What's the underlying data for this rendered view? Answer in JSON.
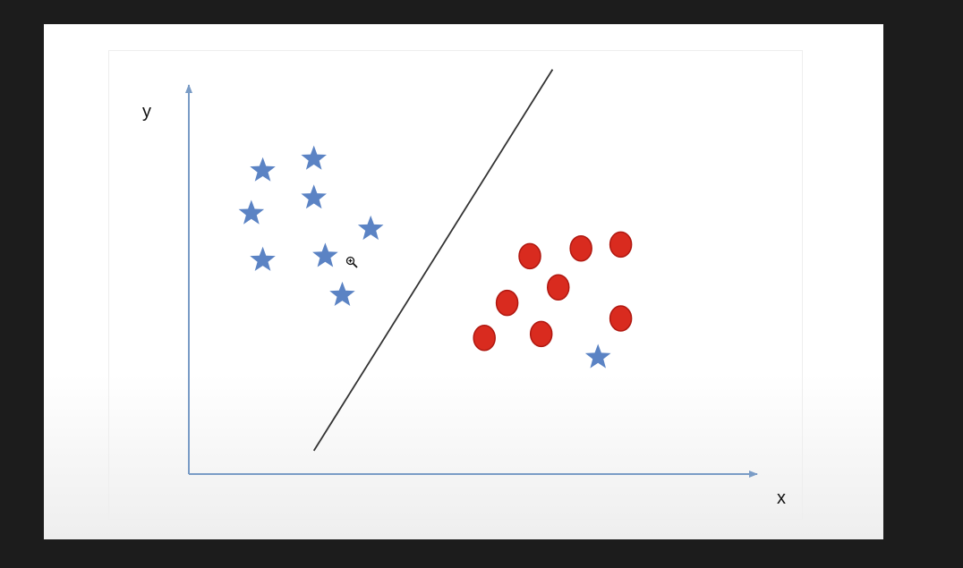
{
  "chart_data": {
    "type": "scatter",
    "xlabel": "x",
    "ylabel": "y",
    "xlim": [
      0,
      100
    ],
    "ylim": [
      0,
      100
    ],
    "grid": false,
    "series": [
      {
        "marker": "star",
        "color": "#5b83c4",
        "points": [
          [
            13,
            78
          ],
          [
            22,
            81
          ],
          [
            22,
            71
          ],
          [
            11,
            67
          ],
          [
            32,
            63
          ],
          [
            13,
            55
          ],
          [
            24,
            56
          ],
          [
            27,
            46
          ],
          [
            72,
            30
          ]
        ]
      },
      {
        "marker": "circle",
        "color": "#d92b1f",
        "edge": "#b01810",
        "points": [
          [
            60,
            56
          ],
          [
            69,
            58
          ],
          [
            76,
            59
          ],
          [
            65,
            48
          ],
          [
            56,
            44
          ],
          [
            52,
            35
          ],
          [
            62,
            36
          ],
          [
            76,
            40
          ]
        ]
      }
    ],
    "separator_line": {
      "from": [
        22,
        6
      ],
      "to": [
        64,
        104
      ],
      "color": "#333333"
    },
    "axis_color": "#7a9cc6"
  },
  "colors": {
    "window_background": "#1c1c1c",
    "slide_background": "#ffffff"
  },
  "icons": {
    "cursor": "zoom-in-cursor-icon"
  }
}
